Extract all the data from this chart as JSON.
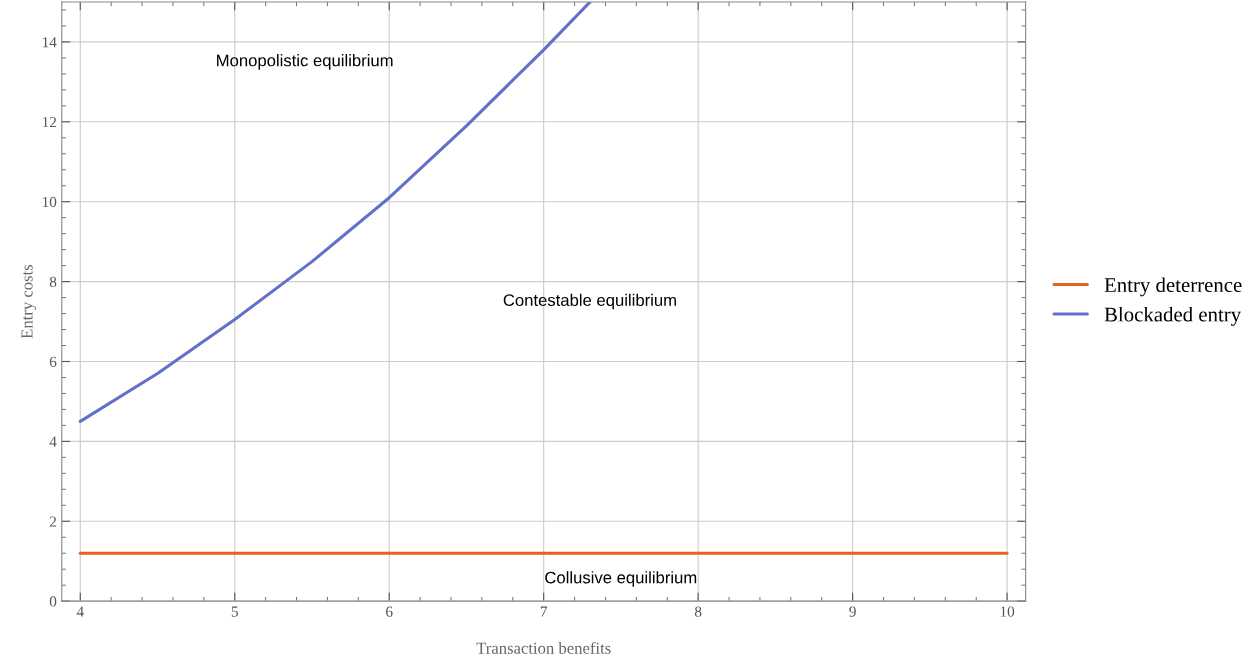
{
  "chart_data": {
    "type": "line",
    "xlabel": "Transaction benefits",
    "ylabel": "Entry costs",
    "xlim": [
      3.88,
      10.12
    ],
    "ylim": [
      0,
      15
    ],
    "xticks": [
      4,
      5,
      6,
      7,
      8,
      9,
      10
    ],
    "yticks": [
      0,
      2,
      4,
      6,
      8,
      10,
      12,
      14
    ],
    "grid": true,
    "legend": "right",
    "marker": "none",
    "line_style": "solid",
    "series": [
      {
        "name": "Entry deterrence",
        "color": "#e8601c",
        "x": [
          4,
          10
        ],
        "values": [
          1.2,
          1.2
        ]
      },
      {
        "name": "Blockaded entry",
        "color": "#6270c8",
        "x": [
          4,
          4.5,
          5,
          5.5,
          6,
          6.5,
          7,
          7.3
        ],
        "values": [
          4.5,
          5.7,
          7.05,
          8.5,
          10.1,
          11.9,
          13.8,
          15
        ]
      }
    ],
    "annotations": [
      "Monopolistic equilibrium",
      "Contestable equilibrium",
      "Collusive equilibrium"
    ]
  }
}
